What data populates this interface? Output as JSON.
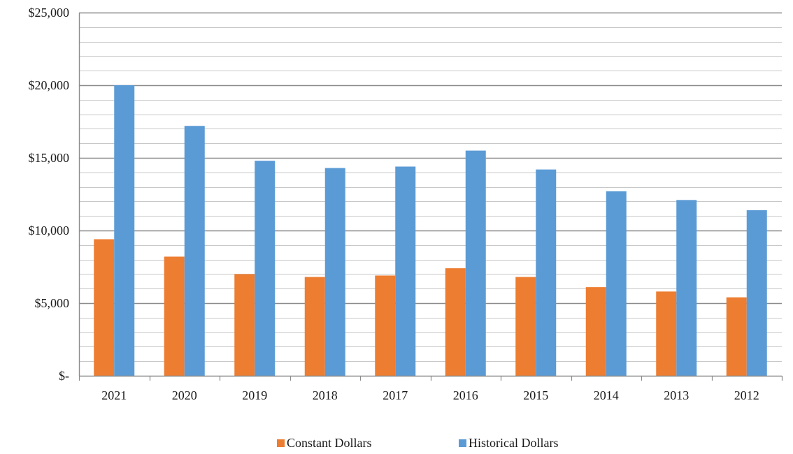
{
  "chart_data": {
    "type": "bar",
    "title": "",
    "xlabel": "",
    "ylabel": "",
    "categories": [
      "2021",
      "2020",
      "2019",
      "2018",
      "2017",
      "2016",
      "2015",
      "2014",
      "2013",
      "2012"
    ],
    "series": [
      {
        "name": "Constant Dollars",
        "color": "#ED7D31",
        "values": [
          9400,
          8200,
          7000,
          6800,
          6900,
          7400,
          6800,
          6100,
          5800,
          5400
        ]
      },
      {
        "name": "Historical Dollars",
        "color": "#5B9BD5",
        "values": [
          20000,
          17200,
          14800,
          14300,
          14400,
          15500,
          14200,
          12700,
          12100,
          11400
        ]
      }
    ],
    "ylim": [
      0,
      25000
    ],
    "y_ticks": [
      0,
      5000,
      10000,
      15000,
      20000,
      25000
    ],
    "y_tick_labels": [
      "$-",
      "$5,000",
      "$10,000",
      "$15,000",
      "$20,000",
      "$25,000"
    ],
    "y_minor_step": 1000,
    "grid": true,
    "legend_position": "bottom"
  }
}
